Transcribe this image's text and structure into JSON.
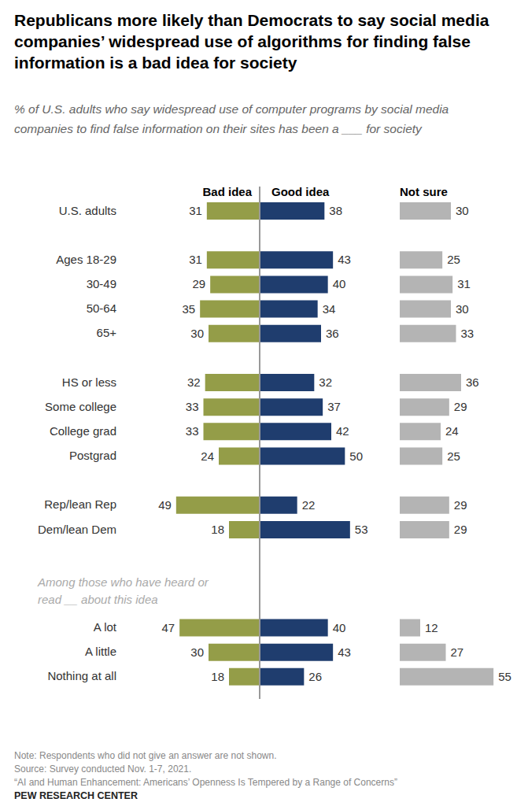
{
  "chart_data": {
    "type": "bar",
    "orientation": "horizontal",
    "title": "Republicans more likely than Democrats to say social media companies’ widespread use of algorithms for finding false information is a bad idea for society",
    "subtitle": "% of U.S. adults who say widespread use of computer programs by social media companies to find false information on their sites has been a ___ for society",
    "categories": [
      "U.S. adults",
      null,
      "Ages 18-29",
      "30-49",
      "50-64",
      "65+",
      null,
      "HS or less",
      "Some college",
      "College grad",
      "Postgrad",
      null,
      "Rep/lean Rep",
      "Dem/lean Dem",
      null,
      null,
      null,
      "A lot",
      "A little",
      "Nothing at all"
    ],
    "series": [
      {
        "name": "Bad idea",
        "color": "#949d48",
        "values": [
          31,
          null,
          31,
          29,
          35,
          30,
          null,
          32,
          33,
          33,
          24,
          null,
          49,
          18,
          null,
          null,
          null,
          47,
          30,
          18
        ]
      },
      {
        "name": "Good idea",
        "color": "#1f3d6e",
        "values": [
          38,
          null,
          43,
          40,
          34,
          36,
          null,
          32,
          37,
          42,
          50,
          null,
          22,
          53,
          null,
          null,
          null,
          40,
          43,
          26
        ]
      },
      {
        "name": "Not sure",
        "color": "#b4b4b4",
        "values": [
          30,
          null,
          25,
          31,
          30,
          33,
          null,
          36,
          29,
          24,
          25,
          null,
          29,
          29,
          null,
          null,
          null,
          12,
          27,
          55
        ]
      }
    ],
    "xlim": [
      0,
      60
    ],
    "annotations": [
      "Among those who have heard or read __ about this idea"
    ],
    "notes": [
      "Note: Respondents who did not give an answer are not shown.",
      "Source: Survey conducted Nov. 1-7, 2021.",
      "“AI and Human Enhancement: Americans’ Openness Is Tempered by a Range of Concerns”"
    ],
    "credit": "PEW RESEARCH CENTER",
    "data_labels": true,
    "tick_labels": false,
    "grid": false
  }
}
